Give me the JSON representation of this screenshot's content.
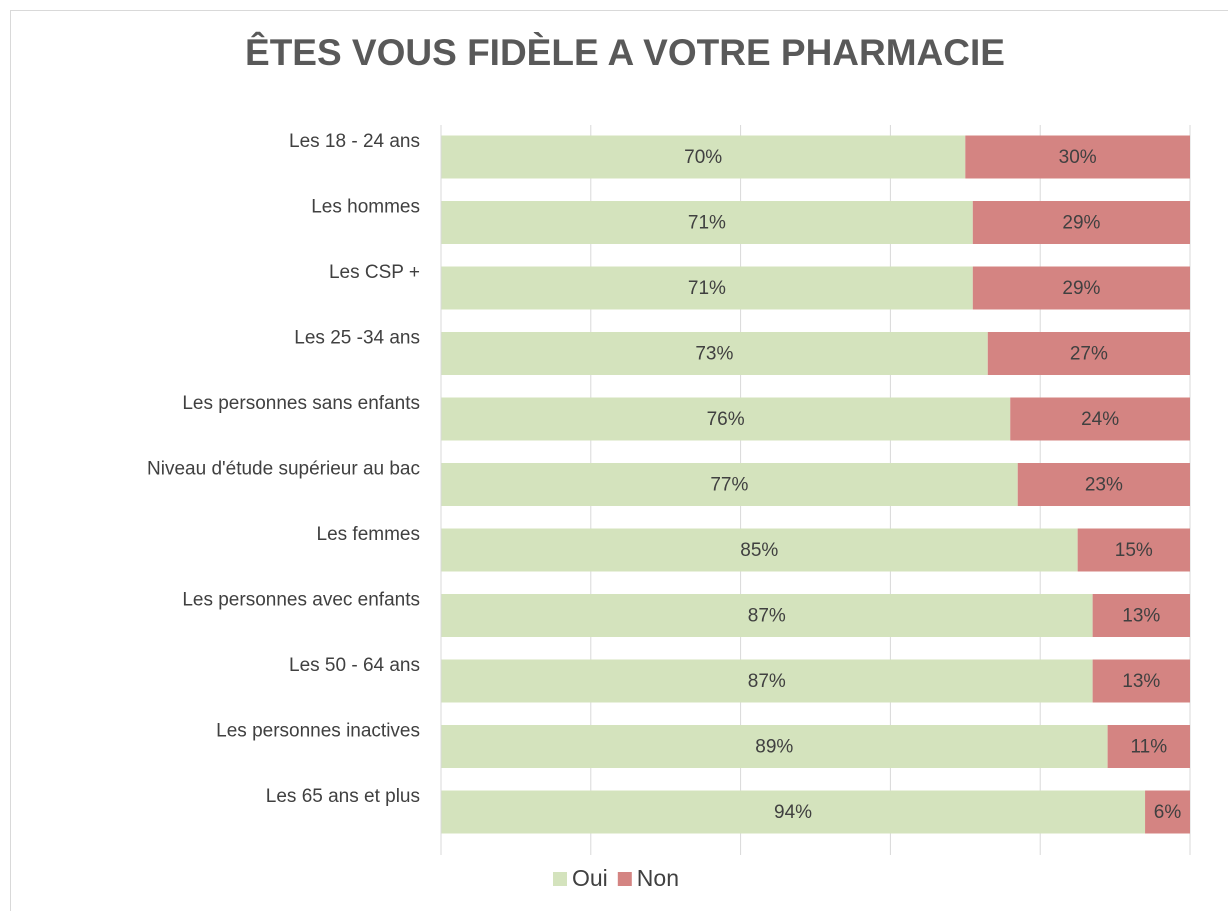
{
  "chart_data": {
    "type": "stacked_barh",
    "title": "ÊTES VOUS FIDÈLE A VOTRE PHARMACIE",
    "categories": [
      "Les 18 - 24 ans",
      "Les hommes",
      "Les CSP +",
      "Les 25 -34 ans",
      "Les personnes sans enfants",
      "Niveau d'étude supérieur au bac",
      "Les femmes",
      "Les personnes avec enfants ",
      "Les 50 - 64 ans",
      "Les personnes inactives",
      "Les 65 ans et plus"
    ],
    "series": [
      {
        "name": "Oui",
        "color": "#d4e3bd",
        "values": [
          70,
          71,
          71,
          73,
          76,
          77,
          85,
          87,
          87,
          89,
          94
        ],
        "value_labels": [
          "70%",
          "71%",
          "71%",
          "73%",
          "76%",
          "77%",
          "85%",
          "87%",
          "87%",
          "89%",
          "94%"
        ]
      },
      {
        "name": "Non",
        "color": "#d48482",
        "values": [
          30,
          29,
          29,
          27,
          24,
          23,
          15,
          13,
          13,
          11,
          6
        ],
        "value_labels": [
          "30%",
          "29%",
          "29%",
          "27%",
          "24%",
          "23%",
          "15%",
          "13%",
          "13%",
          "11%",
          "6%"
        ]
      }
    ],
    "xlim": [
      0,
      100
    ],
    "xticks": [
      0,
      20,
      40,
      60,
      80,
      100
    ],
    "grid": true,
    "legend": "bottom"
  }
}
